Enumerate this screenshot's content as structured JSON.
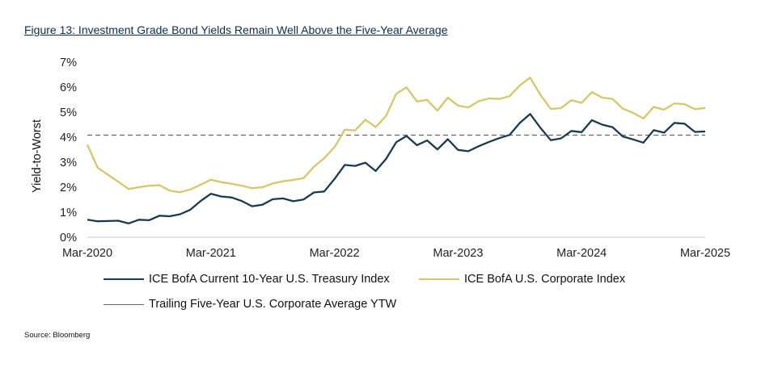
{
  "title": "Figure 13: Investment Grade Bond Yields Remain Well Above the Five-Year Average",
  "source": "Source: Bloomberg",
  "colors": {
    "treasury": "#1b3a4f",
    "corporate": "#d6c76a",
    "average": "#666666"
  },
  "chart_data": {
    "type": "line",
    "ylabel": "Yield-to-Worst",
    "ylim": [
      0,
      7
    ],
    "yticks": [
      "0%",
      "1%",
      "2%",
      "3%",
      "4%",
      "5%",
      "6%",
      "7%"
    ],
    "xticks": [
      "Mar-2020",
      "Mar-2021",
      "Mar-2022",
      "Mar-2023",
      "Mar-2024",
      "Mar-2025"
    ],
    "x": [
      "2020-03",
      "2020-04",
      "2020-05",
      "2020-06",
      "2020-07",
      "2020-08",
      "2020-09",
      "2020-10",
      "2020-11",
      "2020-12",
      "2021-01",
      "2021-02",
      "2021-03",
      "2021-04",
      "2021-05",
      "2021-06",
      "2021-07",
      "2021-08",
      "2021-09",
      "2021-10",
      "2021-11",
      "2021-12",
      "2022-01",
      "2022-02",
      "2022-03",
      "2022-04",
      "2022-05",
      "2022-06",
      "2022-07",
      "2022-08",
      "2022-09",
      "2022-10",
      "2022-11",
      "2022-12",
      "2023-01",
      "2023-02",
      "2023-03",
      "2023-04",
      "2023-05",
      "2023-06",
      "2023-07",
      "2023-08",
      "2023-09",
      "2023-10",
      "2023-11",
      "2023-12",
      "2024-01",
      "2024-02",
      "2024-03",
      "2024-04",
      "2024-05",
      "2024-06",
      "2024-07",
      "2024-08",
      "2024-09",
      "2024-10",
      "2024-11",
      "2024-12",
      "2025-01",
      "2025-02",
      "2025-03"
    ],
    "series": [
      {
        "name": "ICE BofA Current 10-Year U.S. Treasury Index",
        "values": [
          0.7,
          0.64,
          0.65,
          0.66,
          0.55,
          0.7,
          0.68,
          0.86,
          0.84,
          0.92,
          1.1,
          1.45,
          1.74,
          1.63,
          1.59,
          1.45,
          1.24,
          1.3,
          1.52,
          1.55,
          1.44,
          1.51,
          1.79,
          1.83,
          2.33,
          2.89,
          2.85,
          2.98,
          2.65,
          3.13,
          3.8,
          4.05,
          3.68,
          3.87,
          3.51,
          3.92,
          3.49,
          3.44,
          3.64,
          3.81,
          3.96,
          4.09,
          4.57,
          4.93,
          4.37,
          3.88,
          3.95,
          4.25,
          4.2,
          4.68,
          4.5,
          4.4,
          4.03,
          3.91,
          3.78,
          4.28,
          4.18,
          4.57,
          4.54,
          4.21,
          4.23
        ]
      },
      {
        "name": "ICE BofA U.S. Corporate Index",
        "values": [
          3.7,
          2.78,
          2.5,
          2.22,
          1.93,
          2.0,
          2.06,
          2.08,
          1.86,
          1.8,
          1.91,
          2.1,
          2.3,
          2.2,
          2.14,
          2.06,
          1.96,
          2.0,
          2.15,
          2.24,
          2.29,
          2.36,
          2.82,
          3.16,
          3.6,
          4.3,
          4.27,
          4.7,
          4.4,
          4.85,
          5.74,
          5.99,
          5.43,
          5.49,
          5.06,
          5.58,
          5.26,
          5.19,
          5.44,
          5.55,
          5.53,
          5.64,
          6.07,
          6.38,
          5.69,
          5.13,
          5.16,
          5.48,
          5.37,
          5.8,
          5.58,
          5.53,
          5.14,
          4.97,
          4.75,
          5.21,
          5.1,
          5.35,
          5.32,
          5.12,
          5.17
        ]
      }
    ],
    "reference_line": {
      "name": "Trailing Five-Year U.S. Corporate Average YTW",
      "value": 4.08
    },
    "grid": false,
    "legend_position": "bottom"
  }
}
